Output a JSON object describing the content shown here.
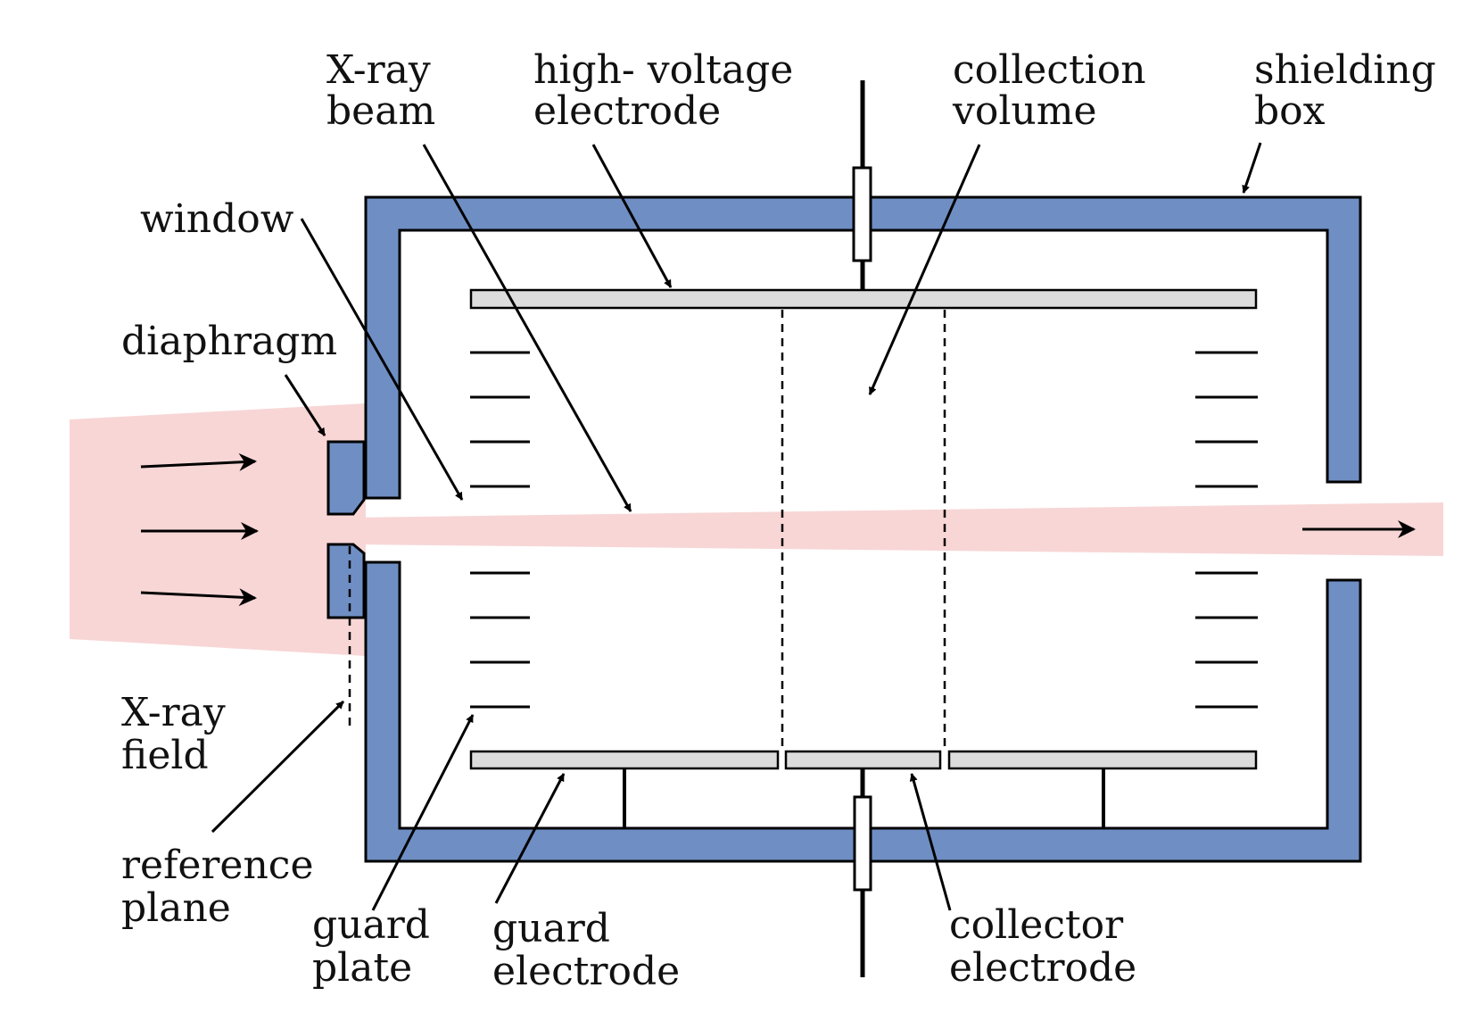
{
  "colors": {
    "shielding": "#6f8fc4",
    "beam": "#f8d6d6",
    "electrode": "#dcdcdc",
    "line": "#000000"
  },
  "labels": {
    "xray_beam": [
      "X-ray",
      "beam"
    ],
    "hv_electrode": [
      "high- voltage",
      "electrode"
    ],
    "collection_volume": [
      "collection",
      "volume"
    ],
    "shielding_box": [
      "shielding",
      "box"
    ],
    "window": [
      "window"
    ],
    "diaphragm": [
      "diaphragm"
    ],
    "xray_field": [
      "X-ray",
      "field"
    ],
    "reference_plane": [
      "reference",
      "plane"
    ],
    "guard_plate": [
      "guard",
      "plate"
    ],
    "guard_electrode": [
      "guard",
      "electrode"
    ],
    "collector_electrode": [
      "collector",
      "electrode"
    ]
  }
}
